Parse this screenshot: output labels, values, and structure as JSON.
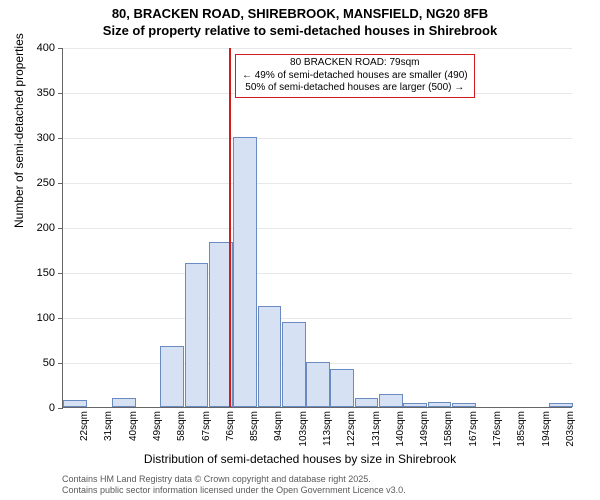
{
  "title": {
    "line1": "80, BRACKEN ROAD, SHIREBROOK, MANSFIELD, NG20 8FB",
    "line2": "Size of property relative to semi-detached houses in Shirebrook"
  },
  "chart": {
    "type": "histogram",
    "ylabel": "Number of semi-detached properties",
    "xlabel": "Distribution of semi-detached houses by size in Shirebrook",
    "ylim": [
      0,
      400
    ],
    "ytick_step": 50,
    "background_color": "#ffffff",
    "grid_color": "#666666",
    "bar_fill": "#d6e1f3",
    "bar_stroke": "#6a8ac2",
    "indicator_color": "#d41a1a",
    "indicator_value_sqm": 79,
    "xtick_labels": [
      "22sqm",
      "31sqm",
      "40sqm",
      "49sqm",
      "58sqm",
      "67sqm",
      "76sqm",
      "85sqm",
      "94sqm",
      "103sqm",
      "113sqm",
      "122sqm",
      "131sqm",
      "140sqm",
      "149sqm",
      "158sqm",
      "167sqm",
      "176sqm",
      "185sqm",
      "194sqm",
      "203sqm"
    ],
    "values": [
      8,
      0,
      10,
      0,
      68,
      160,
      183,
      300,
      112,
      95,
      50,
      42,
      10,
      15,
      5,
      6,
      5,
      0,
      0,
      0,
      5
    ],
    "title_fontsize": 13,
    "label_fontsize": 12,
    "tick_fontsize": 10
  },
  "annotation": {
    "line1": "← 49% of semi-detached houses are smaller (490)",
    "line2": "50% of semi-detached houses are larger (500) →",
    "header": "80 BRACKEN ROAD: 79sqm"
  },
  "footer": {
    "line1": "Contains HM Land Registry data © Crown copyright and database right 2025.",
    "line2": "Contains public sector information licensed under the Open Government Licence v3.0."
  }
}
